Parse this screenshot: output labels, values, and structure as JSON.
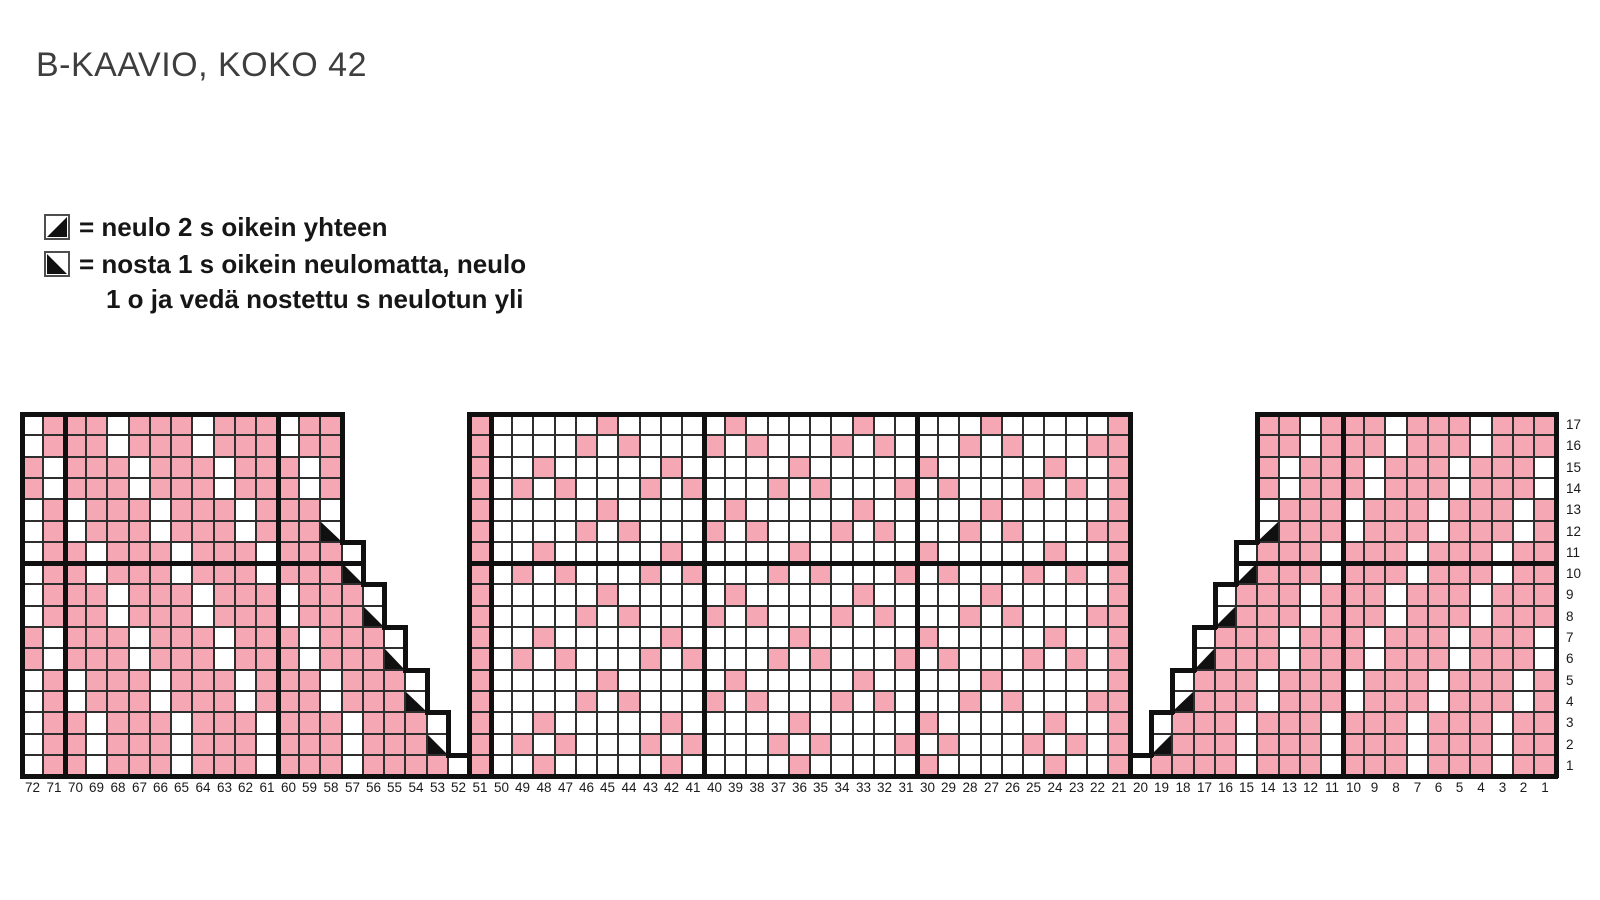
{
  "title": "B-KAAVIO, KOKO 42",
  "legend": {
    "items": [
      {
        "icon": "k2tog-icon",
        "glyph": "bottom-right-triangle",
        "label": "= neulo 2 s oikein yhteen"
      },
      {
        "icon": "psso-icon",
        "glyph": "bottom-left-triangle",
        "label": "= nosta 1 s oikein neulomatta, neulo",
        "label_line2": "1 o ja vedä nostettu s neulotun yli"
      }
    ]
  },
  "colors": {
    "pink": "#F5A8B4",
    "white": "#FFFFFF",
    "grid_line": "#2E2E2E",
    "frame": "#101010",
    "label_text": "#1A1A1A",
    "title_text": "#3E3E3E"
  },
  "chart": {
    "row_labels": [
      17,
      16,
      15,
      14,
      13,
      12,
      11,
      10,
      9,
      8,
      7,
      6,
      5,
      4,
      3,
      2,
      1
    ],
    "col_labels": [
      72,
      71,
      70,
      69,
      68,
      67,
      66,
      65,
      64,
      63,
      62,
      61,
      60,
      59,
      58,
      57,
      56,
      55,
      54,
      53,
      52,
      51,
      50,
      49,
      48,
      47,
      46,
      45,
      44,
      43,
      42,
      41,
      40,
      39,
      38,
      37,
      36,
      35,
      34,
      33,
      32,
      31,
      30,
      29,
      28,
      27,
      26,
      25,
      24,
      23,
      22,
      21,
      20,
      19,
      18,
      17,
      16,
      15,
      14,
      13,
      12,
      11,
      10,
      9,
      8,
      7,
      6,
      5,
      4,
      3,
      2,
      1
    ],
    "cell_codes": {
      "P": "pink stitch",
      "W": "white stitch",
      "S": "nosta 1 s oikein neulomatta, neulo 1 o ja vedä nostettu s neulotun yli (bottom-left triangle)",
      "K": "neulo 2 s oikein yhteen (bottom-right triangle)",
      ".": "no stitch"
    },
    "rows": [
      {
        "row": 17,
        "cells": "WPPPWPPPWPPPWPP......PWWWWWPWWWWWPWWWWWPWWWWWPWWWWWP......PPWPPPWPPPWPPP"
      },
      {
        "row": 16,
        "cells": "WPPPWPPPWPPPWPP......PWWWWPWPWWWPWPWWWPWPWWWPWPWWWPP......PPWPPPWPPPWPPP"
      },
      {
        "row": 15,
        "cells": "PWPPPWPPPWPPPWP......PWWPWWWWWPWWWWWPWWWWWPWWWWWPWWP......PWPPPWPPPWPPPW"
      },
      {
        "row": 14,
        "cells": "PWPPPWPPPWPPPWP......PWPWPWWWPWPWWWPWPWWWPWPWWWPWPWP......PWPPPWPPPWPPPW"
      },
      {
        "row": 13,
        "cells": "WPWPPPWPPPWPPPW......PWWWWWPWWWWWPWWWWWPWWWWWPWWWWWP......WPPPWPPPWPPPWP"
      },
      {
        "row": 12,
        "cells": "WPWPPPWPPPWPPPS......PWWWWPWPWWWPWPWWWPWPWWWPWPWWWPP......KPPPWPPPWPPPWP"
      },
      {
        "row": 11,
        "cells": "WPPWPPPWPPPWPPPW.....PWWPWWWWWPWWWWWPWWWWWPWWWWWPWWP.....WPPPWPPPWPPPWPP"
      },
      {
        "row": 10,
        "cells": "WPPWPPPWPPPWPPPS.....PWPWPWWWPWPWWWPWPWWWPWPWWWPWPWP.....KPPPWPPPWPPPWPP"
      },
      {
        "row": 9,
        "cells": "WPPPWPPPWPPPWPPPW....PWWWWWPWWWWWPWWWWWPWWWWWPWWWWWP....WPPPWPPPWPPPWPPP"
      },
      {
        "row": 8,
        "cells": "WPPPWPPPWPPPWPPPS....PWWWWPWPWWWPWPWWWPWPWWWPWPWWWPP....KPPPWPPPWPPPWPPP"
      },
      {
        "row": 7,
        "cells": "PWPPPWPPPWPPPWPPPW...PWWPWWWWWPWWWWWPWWWWWPWWWWWPWWP...WPPPWPPPWPPPWPPPW"
      },
      {
        "row": 6,
        "cells": "PWPPPWPPPWPPPWPPPS...PWPWPWWWPWPWWWPWPWWWPWPWWWPWPWP...KPPPWPPPWPPPWPPPW"
      },
      {
        "row": 5,
        "cells": "WPWPPPWPPPWPPPWPPPW..PWWWWWPWWWWWPWWWWWPWWWWWPWWWWWP..WPPPWPPPWPPPWPPPWP"
      },
      {
        "row": 4,
        "cells": "WPWPPPWPPPWPPPWPPPS..PWWWWPWPWWWPWPWWWPWPWWWPWPWWWPP..KPPPWPPPWPPPWPPPWP"
      },
      {
        "row": 3,
        "cells": "WPPWPPPWPPPWPPPWPPPW.PWWPWWWWWPWWWWWPWWWWWPWWWWWPWWP.WPPPWPPPWPPPWPPPWPP"
      },
      {
        "row": 2,
        "cells": "WPPWPPPWPPPWPPPWPPPS.PWPWPWWWPWPWWWPWPWWWPWPWWWPWPWP.KPPPWPPPWPPPWPPPWPP"
      },
      {
        "row": 1,
        "cells": "WPPWPPPWPPPWPPPWPPPPWPWWPWWWWWPWWWWWPWWWWWPWWWWWPWWPWPPPPWPPPWPPPWPPPWPP"
      }
    ],
    "sections": [
      {
        "name": "left",
        "row_spans": [
          [
            72,
            58
          ],
          [
            72,
            58
          ],
          [
            72,
            58
          ],
          [
            72,
            58
          ],
          [
            72,
            58
          ],
          [
            72,
            58
          ],
          [
            72,
            57
          ],
          [
            72,
            57
          ],
          [
            72,
            56
          ],
          [
            72,
            56
          ],
          [
            72,
            55
          ],
          [
            72,
            55
          ],
          [
            72,
            54
          ],
          [
            72,
            54
          ],
          [
            72,
            53
          ],
          [
            72,
            53
          ],
          [
            72,
            52
          ]
        ]
      },
      {
        "name": "middle",
        "row_spans": [
          [
            51,
            21
          ],
          [
            51,
            21
          ],
          [
            51,
            21
          ],
          [
            51,
            21
          ],
          [
            51,
            21
          ],
          [
            51,
            21
          ],
          [
            51,
            21
          ],
          [
            51,
            21
          ],
          [
            51,
            21
          ],
          [
            51,
            21
          ],
          [
            51,
            21
          ],
          [
            51,
            21
          ],
          [
            51,
            21
          ],
          [
            51,
            21
          ],
          [
            51,
            21
          ],
          [
            51,
            21
          ],
          [
            51,
            21
          ]
        ]
      },
      {
        "name": "right",
        "row_spans": [
          [
            14,
            1
          ],
          [
            14,
            1
          ],
          [
            14,
            1
          ],
          [
            14,
            1
          ],
          [
            14,
            1
          ],
          [
            14,
            1
          ],
          [
            15,
            1
          ],
          [
            15,
            1
          ],
          [
            16,
            1
          ],
          [
            16,
            1
          ],
          [
            17,
            1
          ],
          [
            17,
            1
          ],
          [
            18,
            1
          ],
          [
            18,
            1
          ],
          [
            19,
            1
          ],
          [
            19,
            1
          ],
          [
            20,
            1
          ]
        ]
      }
    ],
    "thick_vertical_boundaries": [
      2,
      12,
      22,
      32,
      42,
      62
    ],
    "thick_horizontal": {
      "row_boundary_index": 7,
      "segments": [
        [
          0,
          16
        ],
        [
          21,
          52
        ],
        [
          57,
          72
        ]
      ]
    }
  }
}
